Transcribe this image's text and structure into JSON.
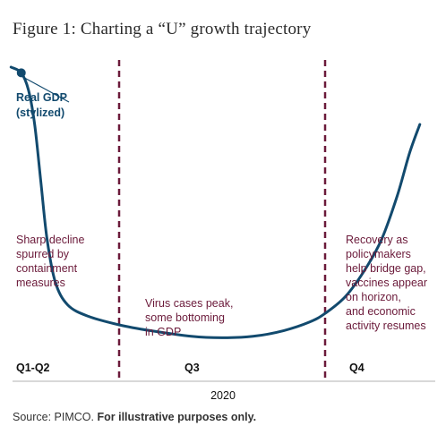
{
  "figure": {
    "title": "Figure 1: Charting a “U” growth trajectory"
  },
  "source": {
    "prefix": "Source: PIMCO.",
    "emphasis": "For illustrative purposes only."
  },
  "chart_data": {
    "type": "line",
    "title": "Figure 1: Charting a “U” growth trajectory",
    "xlabel": "2020",
    "ylabel": "",
    "categories": [
      "Q1-Q2",
      "Q3",
      "Q4"
    ],
    "xlim": [
      0,
      4
    ],
    "ylim": [
      0,
      100
    ],
    "dividers": [
      1,
      3
    ],
    "series": [
      {
        "name": "Real GDP (stylized)",
        "name_lines": [
          "Real GDP",
          "(stylized)"
        ],
        "color": "#124a6e",
        "x": [
          -0.05,
          0.05,
          0.12,
          0.18,
          0.24,
          0.3,
          0.38,
          0.5,
          0.7,
          1.0,
          1.3,
          1.7,
          2.0,
          2.3,
          2.6,
          2.85,
          3.0,
          3.2,
          3.4,
          3.55,
          3.7,
          3.82,
          3.92
        ],
        "y": [
          100,
          98,
          92,
          80,
          60,
          40,
          25,
          17,
          13,
          10,
          8,
          6,
          5.5,
          6,
          8,
          11,
          14,
          20,
          30,
          40,
          55,
          70,
          80
        ],
        "marker_index": 1
      }
    ],
    "annotations": [
      {
        "lines": [
          "Sharp decline",
          "spurred by",
          "containment",
          "measures"
        ]
      },
      {
        "lines": [
          "Virus cases peak,",
          "some bottoming",
          "in GDP"
        ]
      },
      {
        "lines": [
          "Recovery as",
          "policymakers",
          "help bridge gap,",
          "vaccines appear",
          "on horizon,",
          "and economic",
          "activity resumes"
        ]
      }
    ],
    "colors": {
      "line": "#124a6e",
      "divider": "#6b1a3a",
      "annotation": "#6b1a3a"
    }
  }
}
